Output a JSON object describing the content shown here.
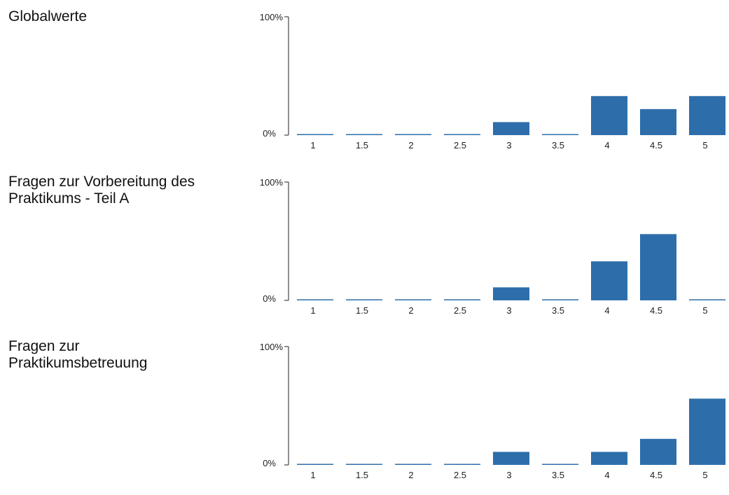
{
  "chart_data": [
    {
      "type": "bar",
      "title": "Globalwerte",
      "categories": [
        "1",
        "1.5",
        "2",
        "2.5",
        "3",
        "3.5",
        "4",
        "4.5",
        "5"
      ],
      "values": [
        0,
        0,
        0,
        0,
        11,
        0,
        33,
        22,
        33
      ],
      "ylim": [
        0,
        100
      ],
      "yticks": [
        "0%",
        "100%"
      ],
      "bar_color": "#2d6eaa"
    },
    {
      "type": "bar",
      "title": "Fragen zur Vorbereitung des\nPraktikums - Teil A",
      "categories": [
        "1",
        "1.5",
        "2",
        "2.5",
        "3",
        "3.5",
        "4",
        "4.5",
        "5"
      ],
      "values": [
        0,
        0,
        0,
        0,
        11,
        0,
        33,
        56,
        0
      ],
      "ylim": [
        0,
        100
      ],
      "yticks": [
        "0%",
        "100%"
      ],
      "bar_color": "#2d6eaa"
    },
    {
      "type": "bar",
      "title": "Fragen zur\nPraktikumsbetreuung",
      "categories": [
        "1",
        "1.5",
        "2",
        "2.5",
        "3",
        "3.5",
        "4",
        "4.5",
        "5"
      ],
      "values": [
        0,
        0,
        0,
        0,
        11,
        0,
        11,
        22,
        56
      ],
      "ylim": [
        0,
        100
      ],
      "yticks": [
        "0%",
        "100%"
      ],
      "bar_color": "#2d6eaa"
    }
  ]
}
